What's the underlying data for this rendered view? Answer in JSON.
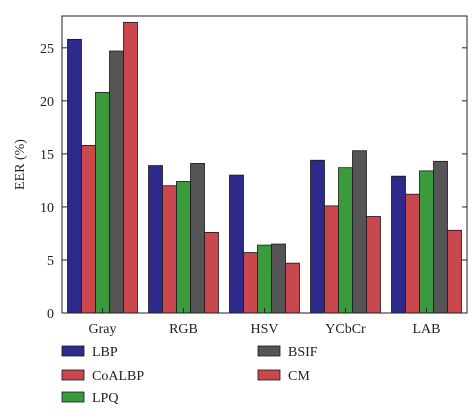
{
  "chart_data": {
    "type": "bar",
    "ylabel": "EER (%)",
    "xlabel": "",
    "ylim": [
      0,
      28
    ],
    "yticks": [
      0,
      5,
      10,
      15,
      20,
      25
    ],
    "grid": false,
    "legend_position": "bottom",
    "categories": [
      "Gray",
      "RGB",
      "HSV",
      "YCbCr",
      "LAB"
    ],
    "series": [
      {
        "name": "LBP",
        "color": "#2e2a8c",
        "values": [
          25.8,
          13.9,
          13.0,
          14.4,
          12.9
        ]
      },
      {
        "name": "CoALBP",
        "color": "#c8484e",
        "values": [
          15.8,
          12.0,
          5.7,
          10.1,
          11.2
        ]
      },
      {
        "name": "LPQ",
        "color": "#3a9a3c",
        "values": [
          20.8,
          12.4,
          6.4,
          13.7,
          13.4
        ]
      },
      {
        "name": "BSIF",
        "color": "#555555",
        "values": [
          24.7,
          14.1,
          6.5,
          15.3,
          14.3
        ]
      },
      {
        "name": "CM",
        "color": "#c8484e",
        "values": [
          27.4,
          7.6,
          4.7,
          9.1,
          7.8
        ]
      }
    ]
  }
}
